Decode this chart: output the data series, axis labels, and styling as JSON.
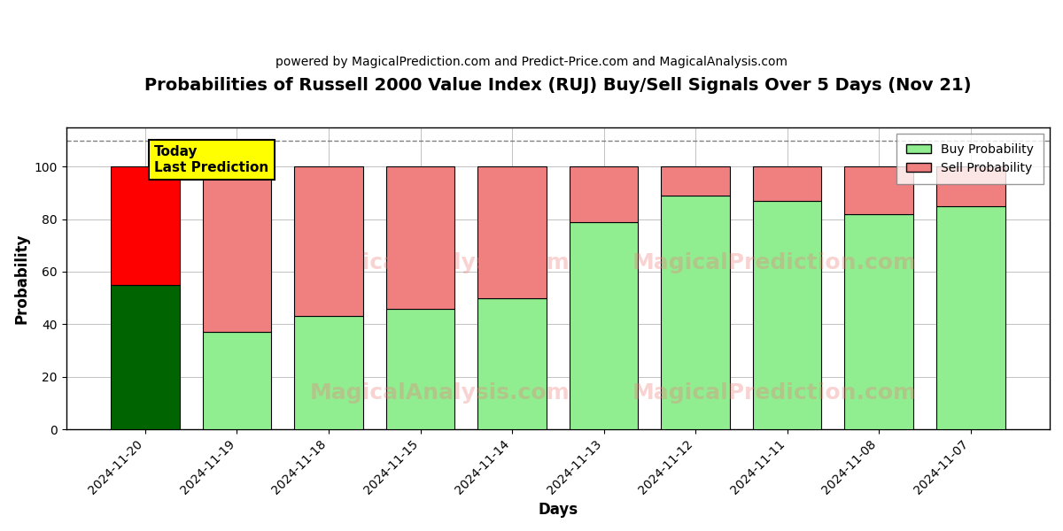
{
  "title": "Probabilities of Russell 2000 Value Index (RUJ) Buy/Sell Signals Over 5 Days (Nov 21)",
  "subtitle": "powered by MagicalPrediction.com and Predict-Price.com and MagicalAnalysis.com",
  "xlabel": "Days",
  "ylabel": "Probability",
  "dates": [
    "2024-11-20",
    "2024-11-19",
    "2024-11-18",
    "2024-11-15",
    "2024-11-14",
    "2024-11-13",
    "2024-11-12",
    "2024-11-11",
    "2024-11-08",
    "2024-11-07"
  ],
  "buy_values": [
    55,
    37,
    43,
    46,
    50,
    79,
    89,
    87,
    82,
    85
  ],
  "sell_values": [
    45,
    63,
    57,
    54,
    50,
    21,
    11,
    13,
    18,
    15
  ],
  "dashed_line_y": 110,
  "ylim": [
    0,
    115
  ],
  "today_label_text": "Today\nLast Prediction",
  "today_label_bg": "#FFFF00",
  "legend_buy_label": "Buy Probability",
  "legend_sell_label": "Sell Probability",
  "buy_color_dark": "#006400",
  "buy_color_light": "#90EE90",
  "sell_color_dark": "#FF0000",
  "sell_color_light": "#F08080",
  "background_color": "#FFFFFF",
  "grid_color": "#AAAAAA",
  "bar_width": 0.75
}
